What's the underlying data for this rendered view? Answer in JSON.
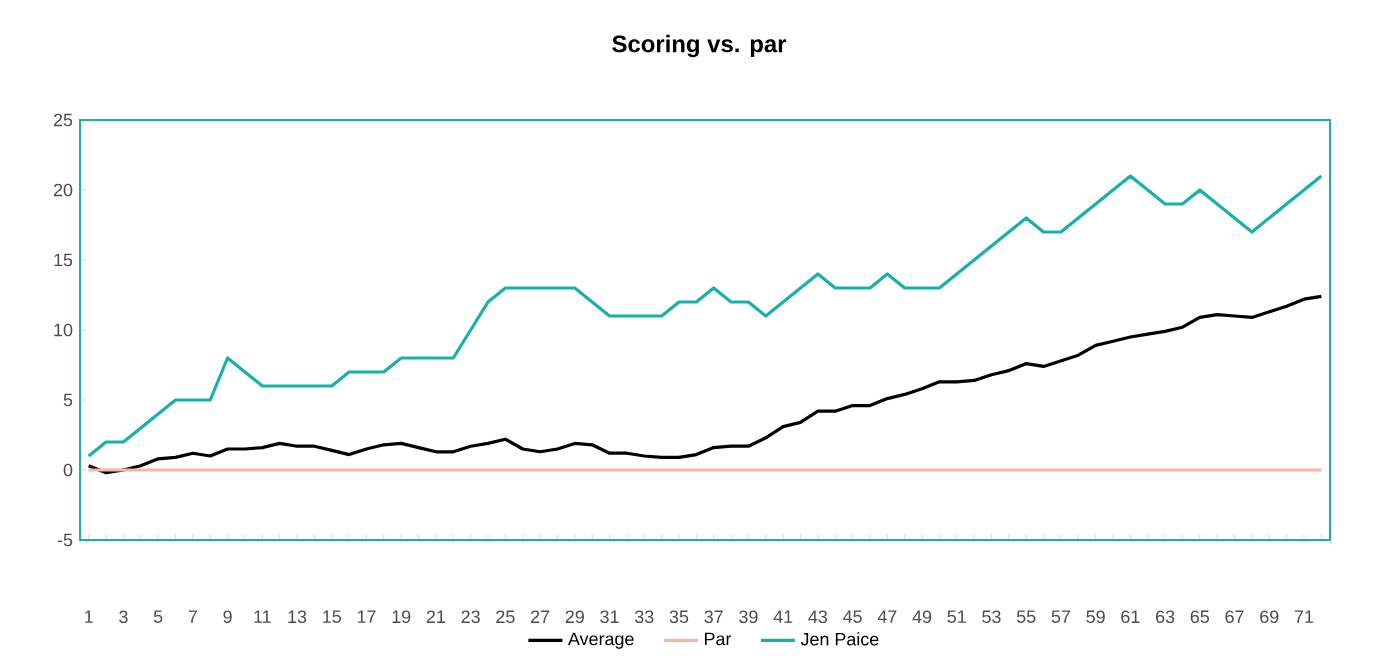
{
  "chart_data": {
    "type": "line",
    "title": "Scoring vs. par",
    "categories": [
      "1",
      null,
      "3",
      null,
      "5",
      null,
      "7",
      null,
      "9",
      null,
      "11",
      null,
      "13",
      null,
      "15",
      null,
      "17",
      null,
      "19",
      null,
      "21",
      null,
      "23",
      null,
      "25",
      null,
      "27",
      null,
      "29",
      null,
      "31",
      null,
      "33",
      null,
      "35",
      null,
      "37",
      null,
      "39",
      null,
      "41",
      null,
      "43",
      null,
      "45",
      null,
      "47",
      null,
      "49",
      null,
      "51",
      null,
      "53",
      null,
      "55",
      null,
      "57",
      null,
      "59",
      null,
      "61",
      null,
      "63",
      null,
      "65",
      null,
      "67",
      null,
      "69",
      null,
      "71",
      null
    ],
    "series": [
      {
        "name": "Average",
        "color": "#000000",
        "values": [
          0.3,
          -0.2,
          0,
          0.3,
          0.8,
          0.9,
          1.2,
          1,
          1.5,
          1.5,
          1.6,
          1.9,
          1.7,
          1.7,
          1.4,
          1.1,
          1.5,
          1.8,
          1.9,
          1.6,
          1.3,
          1.3,
          1.7,
          1.9,
          2.2,
          1.5,
          1.3,
          1.5,
          1.9,
          1.8,
          1.2,
          1.2,
          1.0,
          0.9,
          0.9,
          1.1,
          1.6,
          1.7,
          1.7,
          2.3,
          3.1,
          3.4,
          4.2,
          4.2,
          4.6,
          4.6,
          5.1,
          5.4,
          5.8,
          6.3,
          6.3,
          6.4,
          6.8,
          7.1,
          7.6,
          7.4,
          7.8,
          8.2,
          8.9,
          9.2,
          9.5,
          9.7,
          9.9,
          10.2,
          10.9,
          11.1,
          11.0,
          10.9,
          11.3,
          11.7,
          12.2,
          12.4
        ]
      },
      {
        "name": "Par",
        "color": "#f4b6a6",
        "values": [
          0,
          0,
          0,
          0,
          0,
          0,
          0,
          0,
          0,
          0,
          0,
          0,
          0,
          0,
          0,
          0,
          0,
          0,
          0,
          0,
          0,
          0,
          0,
          0,
          0,
          0,
          0,
          0,
          0,
          0,
          0,
          0,
          0,
          0,
          0,
          0,
          0,
          0,
          0,
          0,
          0,
          0,
          0,
          0,
          0,
          0,
          0,
          0,
          0,
          0,
          0,
          0,
          0,
          0,
          0,
          0,
          0,
          0,
          0,
          0,
          0,
          0,
          0,
          0,
          0,
          0,
          0,
          0,
          0,
          0,
          0,
          0
        ]
      },
      {
        "name": "Jen Paice",
        "color": "#17b0aa",
        "values": [
          1,
          2,
          2,
          3,
          4,
          5,
          5,
          5,
          8,
          7,
          6,
          6,
          6,
          6,
          6,
          7,
          7,
          7,
          8,
          8,
          8,
          8,
          10,
          12,
          13,
          13,
          13,
          13,
          13,
          12,
          11,
          11,
          11,
          11,
          12,
          12,
          13,
          12,
          12,
          11,
          12,
          13,
          14,
          13,
          13,
          13,
          14,
          13,
          13,
          13,
          14,
          15,
          16,
          17,
          18,
          17,
          17,
          18,
          19,
          20,
          21,
          20,
          19,
          19,
          20,
          19,
          18,
          17,
          18,
          19,
          20,
          21
        ]
      }
    ],
    "ylim": [
      -5,
      25
    ],
    "yticks": [
      -5,
      0,
      5,
      10,
      15,
      20,
      25
    ],
    "legend": "bottom",
    "grid": false,
    "marker": "none",
    "line_style": "solid"
  }
}
